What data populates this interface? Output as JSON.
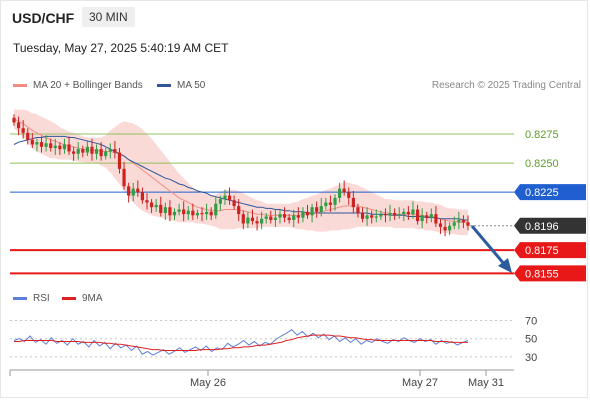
{
  "header": {
    "symbol": "USD/CHF",
    "timeframe": "30 MIN",
    "datetime": "Tuesday, May 27, 2025 5:40:19 AM CET"
  },
  "legend_price": [
    {
      "label": "MA 20 + Bollinger Bands",
      "color": "#f08c84"
    },
    {
      "label": "MA 50",
      "color": "#2f5597"
    }
  ],
  "legend_rsi": [
    {
      "label": "RSI",
      "color": "#5b7fd6"
    },
    {
      "label": "9MA",
      "color": "#e02020"
    }
  ],
  "credit": "Research © 2025 Trading Central",
  "colors": {
    "resistance": "#8fc15d",
    "pivot": "#1f5fcf",
    "support": "#e81818",
    "current": "#333333",
    "bull": "#2f9e44",
    "bear": "#cc2222",
    "band_fill": "#f9d4d0",
    "arrow": "#2a5c9e"
  },
  "chart_data": [
    {
      "type": "candlestick",
      "ylim": [
        0.8145,
        0.83
      ],
      "x_ticks": [
        "May 26",
        "May 27",
        "May 31"
      ],
      "levels": [
        {
          "label": "0.8275",
          "value": 0.8275,
          "kind": "resistance"
        },
        {
          "label": "0.8250",
          "value": 0.825,
          "kind": "resistance"
        },
        {
          "label": "0.8225",
          "value": 0.8225,
          "kind": "pivot"
        },
        {
          "label": "0.8196",
          "value": 0.8196,
          "kind": "current"
        },
        {
          "label": "0.8175",
          "value": 0.8175,
          "kind": "support"
        },
        {
          "label": "0.8155",
          "value": 0.8155,
          "kind": "support"
        }
      ],
      "closes": [
        0.8285,
        0.828,
        0.8276,
        0.827,
        0.8266,
        0.8268,
        0.8264,
        0.8267,
        0.8263,
        0.8265,
        0.8262,
        0.8266,
        0.826,
        0.8258,
        0.8262,
        0.8259,
        0.8264,
        0.8258,
        0.8262,
        0.8256,
        0.826,
        0.8262,
        0.8259,
        0.8245,
        0.823,
        0.8222,
        0.8228,
        0.8225,
        0.8218,
        0.8216,
        0.8212,
        0.8214,
        0.8207,
        0.8212,
        0.8205,
        0.8208,
        0.821,
        0.8206,
        0.8209,
        0.8205,
        0.8207,
        0.8206,
        0.8208,
        0.8205,
        0.8215,
        0.8219,
        0.8222,
        0.8218,
        0.8213,
        0.8206,
        0.8198,
        0.8203,
        0.82,
        0.8198,
        0.8202,
        0.8204,
        0.8201,
        0.8203,
        0.8206,
        0.8203,
        0.8201,
        0.8205,
        0.8203,
        0.8208,
        0.8205,
        0.8212,
        0.8208,
        0.8213,
        0.8216,
        0.8214,
        0.822,
        0.8228,
        0.8225,
        0.822,
        0.8212,
        0.8207,
        0.8202,
        0.8205,
        0.8203,
        0.8204,
        0.8206,
        0.8205,
        0.8207,
        0.8205,
        0.8206,
        0.8208,
        0.8206,
        0.821,
        0.82,
        0.8205,
        0.8203,
        0.8206,
        0.8198,
        0.8195,
        0.8192,
        0.8196,
        0.8199,
        0.8201,
        0.8199,
        0.8196
      ],
      "ma20": [
        0.8288,
        0.8286,
        0.8284,
        0.8281,
        0.8278,
        0.8276,
        0.8274,
        0.8272,
        0.827,
        0.8269,
        0.8267,
        0.8266,
        0.8265,
        0.8264,
        0.8263,
        0.8262,
        0.8261,
        0.8261,
        0.8261,
        0.826,
        0.826,
        0.826,
        0.8259,
        0.8258,
        0.8256,
        0.8253,
        0.825,
        0.8247,
        0.8244,
        0.8241,
        0.8238,
        0.8235,
        0.8232,
        0.8229,
        0.8226,
        0.8223,
        0.822,
        0.8218,
        0.8216,
        0.8214,
        0.8212,
        0.8211,
        0.821,
        0.8209,
        0.8209,
        0.8209,
        0.821,
        0.821,
        0.821,
        0.821,
        0.8209,
        0.8208,
        0.8207,
        0.8206,
        0.8206,
        0.8205,
        0.8205,
        0.8205,
        0.8205,
        0.8205,
        0.8205,
        0.8205,
        0.8205,
        0.8206,
        0.8206,
        0.8207,
        0.8207,
        0.8208,
        0.8209,
        0.821,
        0.8211,
        0.8212,
        0.8213,
        0.8213,
        0.8213,
        0.8213,
        0.8212,
        0.8211,
        0.821,
        0.8209,
        0.8208,
        0.8207,
        0.8207,
        0.8206,
        0.8206,
        0.8206,
        0.8206,
        0.8206,
        0.8205,
        0.8205,
        0.8204,
        0.8204,
        0.8203,
        0.8202,
        0.8201,
        0.82,
        0.82,
        0.8199,
        0.8199,
        0.8199
      ],
      "bb_width": [
        0.0008,
        0.001,
        0.0012,
        0.0014,
        0.0015,
        0.0016,
        0.0016,
        0.0016,
        0.0016,
        0.0015,
        0.0014,
        0.0013,
        0.0012,
        0.0012,
        0.0012,
        0.0011,
        0.0011,
        0.0011,
        0.0011,
        0.0012,
        0.0014,
        0.0018,
        0.0022,
        0.0026,
        0.003,
        0.0032,
        0.0034,
        0.0035,
        0.0035,
        0.0034,
        0.0033,
        0.0031,
        0.0029,
        0.0027,
        0.0025,
        0.0023,
        0.0021,
        0.0019,
        0.0017,
        0.0015,
        0.0014,
        0.0013,
        0.0013,
        0.0013,
        0.0014,
        0.0016,
        0.0017,
        0.0017,
        0.0017,
        0.0016,
        0.0015,
        0.0014,
        0.0013,
        0.0012,
        0.0011,
        0.001,
        0.001,
        0.001,
        0.001,
        0.001,
        0.001,
        0.0011,
        0.0012,
        0.0013,
        0.0014,
        0.0015,
        0.0016,
        0.0017,
        0.0018,
        0.0018,
        0.0019,
        0.002,
        0.002,
        0.002,
        0.0019,
        0.0018,
        0.0017,
        0.0016,
        0.0015,
        0.0014,
        0.0013,
        0.0012,
        0.0012,
        0.0012,
        0.0012,
        0.0012,
        0.0012,
        0.0012,
        0.0012,
        0.0012,
        0.0012,
        0.0012,
        0.0012,
        0.0012,
        0.0011,
        0.0011,
        0.0011,
        0.0011,
        0.0011,
        0.0011
      ],
      "ma50": [
        0.8266,
        0.8268,
        0.8269,
        0.827,
        0.8271,
        0.8272,
        0.8272,
        0.8273,
        0.8273,
        0.8273,
        0.8273,
        0.8273,
        0.8272,
        0.8272,
        0.8271,
        0.827,
        0.8269,
        0.8268,
        0.8267,
        0.8266,
        0.8264,
        0.8262,
        0.826,
        0.8258,
        0.8256,
        0.8253,
        0.8251,
        0.8249,
        0.8247,
        0.8245,
        0.8243,
        0.8241,
        0.8239,
        0.8237,
        0.8236,
        0.8234,
        0.8232,
        0.8231,
        0.8229,
        0.8228,
        0.8226,
        0.8225,
        0.8224,
        0.8222,
        0.8221,
        0.822,
        0.8219,
        0.8218,
        0.8217,
        0.8216,
        0.8215,
        0.8214,
        0.8213,
        0.8212,
        0.8212,
        0.8211,
        0.8211,
        0.821,
        0.821,
        0.8209,
        0.8209,
        0.8208,
        0.8208,
        0.8208,
        0.8207,
        0.8207,
        0.8207,
        0.8207,
        0.8207,
        0.8207,
        0.8207,
        0.8207,
        0.8207,
        0.8207,
        0.8207,
        0.8207,
        0.8207,
        0.8207,
        0.8206,
        0.8206,
        0.8206,
        0.8206,
        0.8205,
        0.8205,
        0.8205,
        0.8205,
        0.8204,
        0.8204,
        0.8204,
        0.8204,
        0.8203,
        0.8203,
        0.8203,
        0.8202,
        0.8202,
        0.8202,
        0.8202,
        0.8202,
        0.8201,
        0.8201
      ]
    },
    {
      "type": "line",
      "title": "RSI",
      "ylim": [
        20,
        75
      ],
      "y_ticks": [
        70,
        50,
        30
      ],
      "series": [
        {
          "name": "RSI",
          "values": [
            48,
            50,
            47,
            53,
            46,
            49,
            44,
            51,
            45,
            48,
            43,
            50,
            44,
            47,
            41,
            48,
            42,
            46,
            39,
            45,
            40,
            43,
            37,
            42,
            33,
            36,
            32,
            35,
            38,
            33,
            36,
            40,
            35,
            38,
            41,
            37,
            42,
            36,
            40,
            38,
            45,
            41,
            44,
            48,
            43,
            47,
            42,
            46,
            44,
            49,
            53,
            56,
            60,
            54,
            58,
            52,
            56,
            51,
            55,
            49,
            53,
            47,
            51,
            46,
            50,
            44,
            48,
            46,
            50,
            47,
            45,
            49,
            47,
            51,
            48,
            46,
            50,
            47,
            49,
            44,
            48,
            45,
            47,
            43,
            46,
            48
          ]
        },
        {
          "name": "9MA",
          "values": [
            47,
            47,
            48,
            48,
            48,
            48,
            48,
            48,
            47,
            47,
            47,
            47,
            47,
            46,
            46,
            46,
            46,
            45,
            45,
            44,
            44,
            43,
            42,
            41,
            40,
            39,
            38,
            38,
            37,
            37,
            37,
            37,
            37,
            37,
            37,
            38,
            38,
            38,
            38,
            39,
            39,
            40,
            40,
            41,
            41,
            42,
            43,
            43,
            44,
            45,
            46,
            48,
            49,
            51,
            52,
            53,
            54,
            54,
            54,
            54,
            53,
            53,
            52,
            51,
            51,
            50,
            49,
            49,
            48,
            48,
            48,
            48,
            48,
            48,
            48,
            48,
            48,
            48,
            48,
            47,
            47,
            47,
            46,
            46,
            46,
            46
          ]
        }
      ]
    }
  ]
}
